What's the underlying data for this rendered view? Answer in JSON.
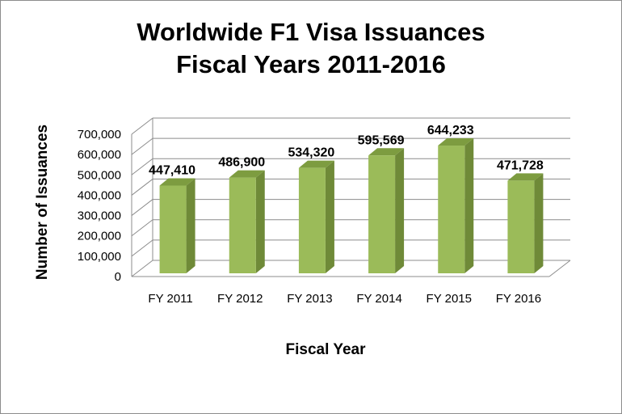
{
  "chart_data": {
    "type": "bar",
    "title_line1": "Worldwide F1 Visa Issuances",
    "title_line2": "Fiscal Years 2011-2016",
    "xlabel": "Fiscal Year",
    "ylabel": "Number of Issuances",
    "categories": [
      "FY 2011",
      "FY 2012",
      "FY 2013",
      "FY 2014",
      "FY 2015",
      "FY 2016"
    ],
    "values": [
      447410,
      486900,
      534320,
      595569,
      644233,
      471728
    ],
    "value_labels": [
      "447,410",
      "486,900",
      "534,320",
      "595,569",
      "644,233",
      "471,728"
    ],
    "ylim": [
      0,
      700000
    ],
    "yticks": [
      0,
      100000,
      200000,
      300000,
      400000,
      500000,
      600000,
      700000
    ],
    "ytick_labels": [
      "0",
      "100,000",
      "200,000",
      "300,000",
      "400,000",
      "500,000",
      "600,000",
      "700,000"
    ],
    "grid": true,
    "bar_color": "#9bbb59",
    "bar_side_color": "#6f8a38",
    "bar_top_color": "#7d9c40"
  }
}
